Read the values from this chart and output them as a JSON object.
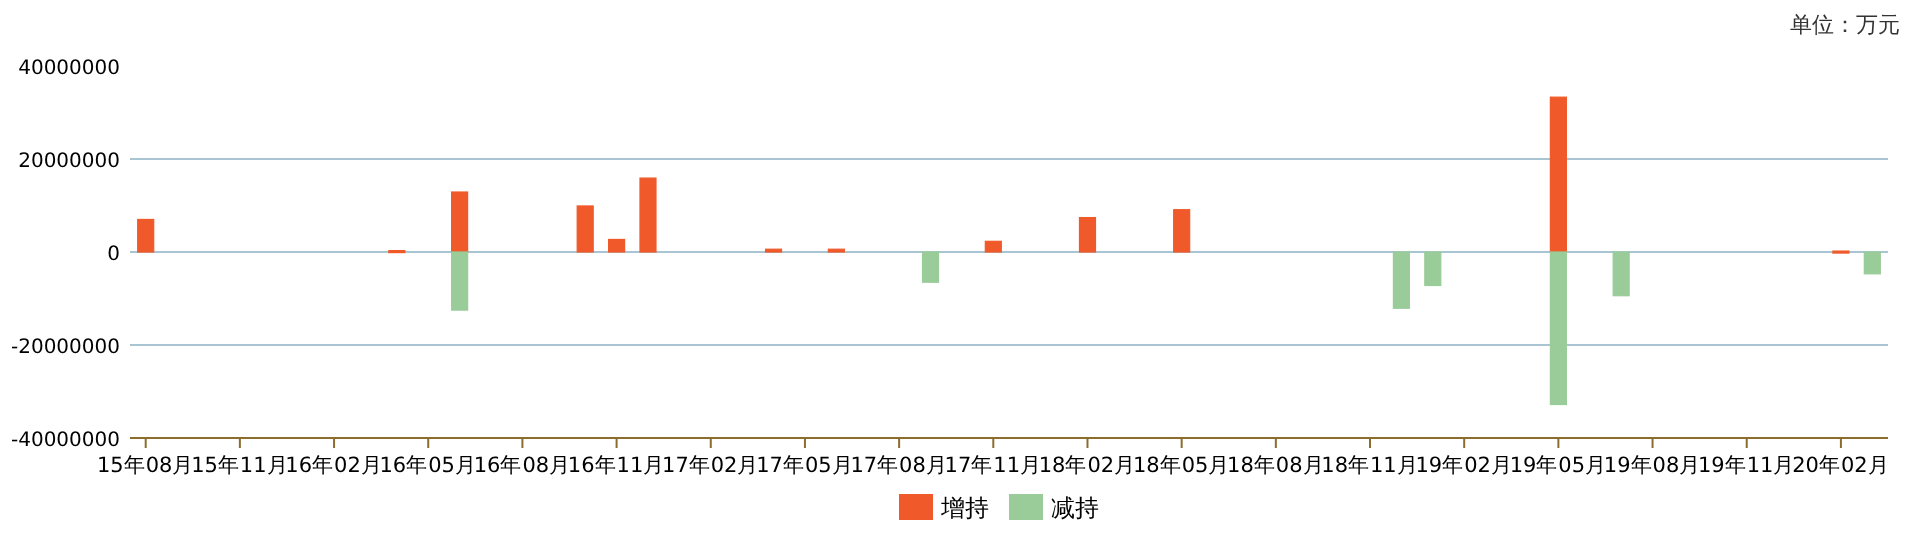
{
  "chart_data": {
    "type": "bar",
    "annotations": [
      "单位：万元"
    ],
    "categories": [
      "15年08月",
      null,
      null,
      "15年11月",
      null,
      null,
      "16年02月",
      null,
      null,
      "16年05月",
      null,
      null,
      "16年08月",
      null,
      null,
      "16年11月",
      null,
      null,
      "17年02月",
      null,
      null,
      "17年05月",
      null,
      null,
      "17年08月",
      null,
      null,
      "17年11月",
      null,
      null,
      "18年02月",
      null,
      null,
      "18年05月",
      null,
      null,
      "18年08月",
      null,
      null,
      "18年11月",
      null,
      null,
      "19年02月",
      null,
      null,
      "19年05月",
      null,
      null,
      "19年08月",
      null,
      null,
      "19年11月",
      null,
      null,
      "20年02月",
      null
    ],
    "series": [
      {
        "name": "增持",
        "color": "#f05a2a",
        "values": [
          7000000,
          null,
          null,
          null,
          null,
          null,
          null,
          null,
          300000,
          null,
          12900000,
          null,
          null,
          null,
          9900000,
          2700000,
          15900000,
          null,
          null,
          null,
          600000,
          null,
          600000,
          null,
          null,
          null,
          null,
          2300000,
          null,
          null,
          7400000,
          null,
          null,
          9100000,
          null,
          null,
          null,
          null,
          null,
          null,
          null,
          null,
          null,
          null,
          null,
          33300000,
          null,
          null,
          null,
          null,
          null,
          null,
          null,
          null,
          200000,
          null
        ]
      },
      {
        "name": "减持",
        "color": "#99cc99",
        "values": [
          null,
          null,
          null,
          null,
          null,
          null,
          null,
          null,
          null,
          null,
          -12500000,
          null,
          null,
          null,
          null,
          null,
          null,
          null,
          null,
          null,
          null,
          null,
          null,
          null,
          null,
          -6500000,
          null,
          null,
          null,
          null,
          null,
          null,
          null,
          null,
          null,
          null,
          null,
          null,
          null,
          null,
          -12100000,
          -7200000,
          null,
          null,
          null,
          -32800000,
          null,
          -9400000,
          null,
          null,
          null,
          null,
          null,
          null,
          null,
          -4700000
        ]
      }
    ],
    "ylim": [
      -40000000,
      40000000
    ],
    "yticks": [
      -40000000,
      -20000000,
      0,
      20000000,
      40000000
    ],
    "grid": "y",
    "legend": "bottom"
  }
}
